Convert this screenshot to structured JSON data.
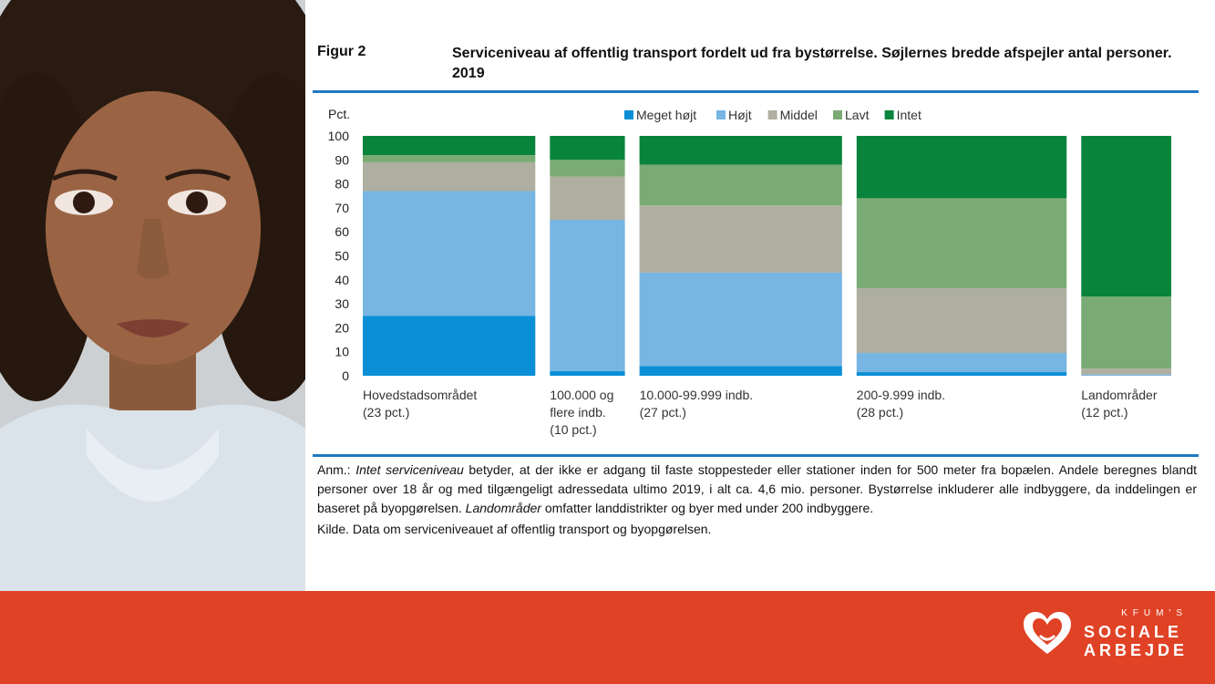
{
  "figure": {
    "label": "Figur 2",
    "title": "Serviceniveau af offentlig transport fordelt ud fra bystørrelse. Søjlernes bredde afspejler antal personer. 2019"
  },
  "note": {
    "prefix": "Anm.: ",
    "italic1": "Intet serviceniveau",
    "text1": " betyder, at der ikke er adgang til faste stoppesteder eller stationer inden for 500 meter fra bopælen. Andele beregnes blandt personer over 18 år og med tilgængeligt adressedata ultimo 2019, i alt ca. 4,6 mio. personer. Bystørrelse inkluderer alle indbyggere, da inddelingen er baseret på byopgørelsen. ",
    "italic2": "Landområder",
    "text2": " omfatter landdistrikter og byer med under 200 indbyggere."
  },
  "source": "Kilde. Data om serviceniveauet af offentlig transport og byopgørelsen.",
  "logo": {
    "small": "KFUM'S",
    "line1": "SOCIALE",
    "line2": "ARBEJDE"
  },
  "colors": {
    "meget_hojt": "#0a8fd6",
    "hojt": "#77b5e3",
    "middel": "#afafa1",
    "lavt": "#7bab74",
    "intet": "#08843c",
    "accent_blue": "#1f78c1",
    "footer_red": "#e04226"
  },
  "chart_data": {
    "type": "bar",
    "stacked": true,
    "variable_width": true,
    "ylabel": "Pct.",
    "ylim": [
      0,
      100
    ],
    "yticks": [
      0,
      10,
      20,
      30,
      40,
      50,
      60,
      70,
      80,
      90,
      100
    ],
    "legend_position": "top",
    "categories": [
      {
        "lines": [
          "Hovedstadsområdet",
          "(23 pct.)"
        ],
        "width_pct": 23
      },
      {
        "lines": [
          "100.000 og",
          "flere indb.",
          "(10 pct.)"
        ],
        "width_pct": 10
      },
      {
        "lines": [
          "10.000-99.999 indb.",
          "(27 pct.)"
        ],
        "width_pct": 27
      },
      {
        "lines": [
          "200-9.999 indb.",
          "(28 pct.)"
        ],
        "width_pct": 28
      },
      {
        "lines": [
          "Landområder",
          "(12 pct.)"
        ],
        "width_pct": 12
      }
    ],
    "series": [
      {
        "name": "Meget højt",
        "color": "#0a8fd6",
        "values": [
          25,
          2,
          4,
          1.5,
          0
        ]
      },
      {
        "name": "Højt",
        "color": "#77b5e3",
        "values": [
          52,
          63,
          39,
          8,
          0.5
        ]
      },
      {
        "name": "Middel",
        "color": "#afafa1",
        "values": [
          12,
          18,
          28,
          27,
          2.5
        ]
      },
      {
        "name": "Lavt",
        "color": "#7bab74",
        "values": [
          3,
          7,
          17,
          37.5,
          30
        ]
      },
      {
        "name": "Intet",
        "color": "#08843c",
        "values": [
          8,
          10,
          12,
          26,
          67
        ]
      }
    ]
  }
}
